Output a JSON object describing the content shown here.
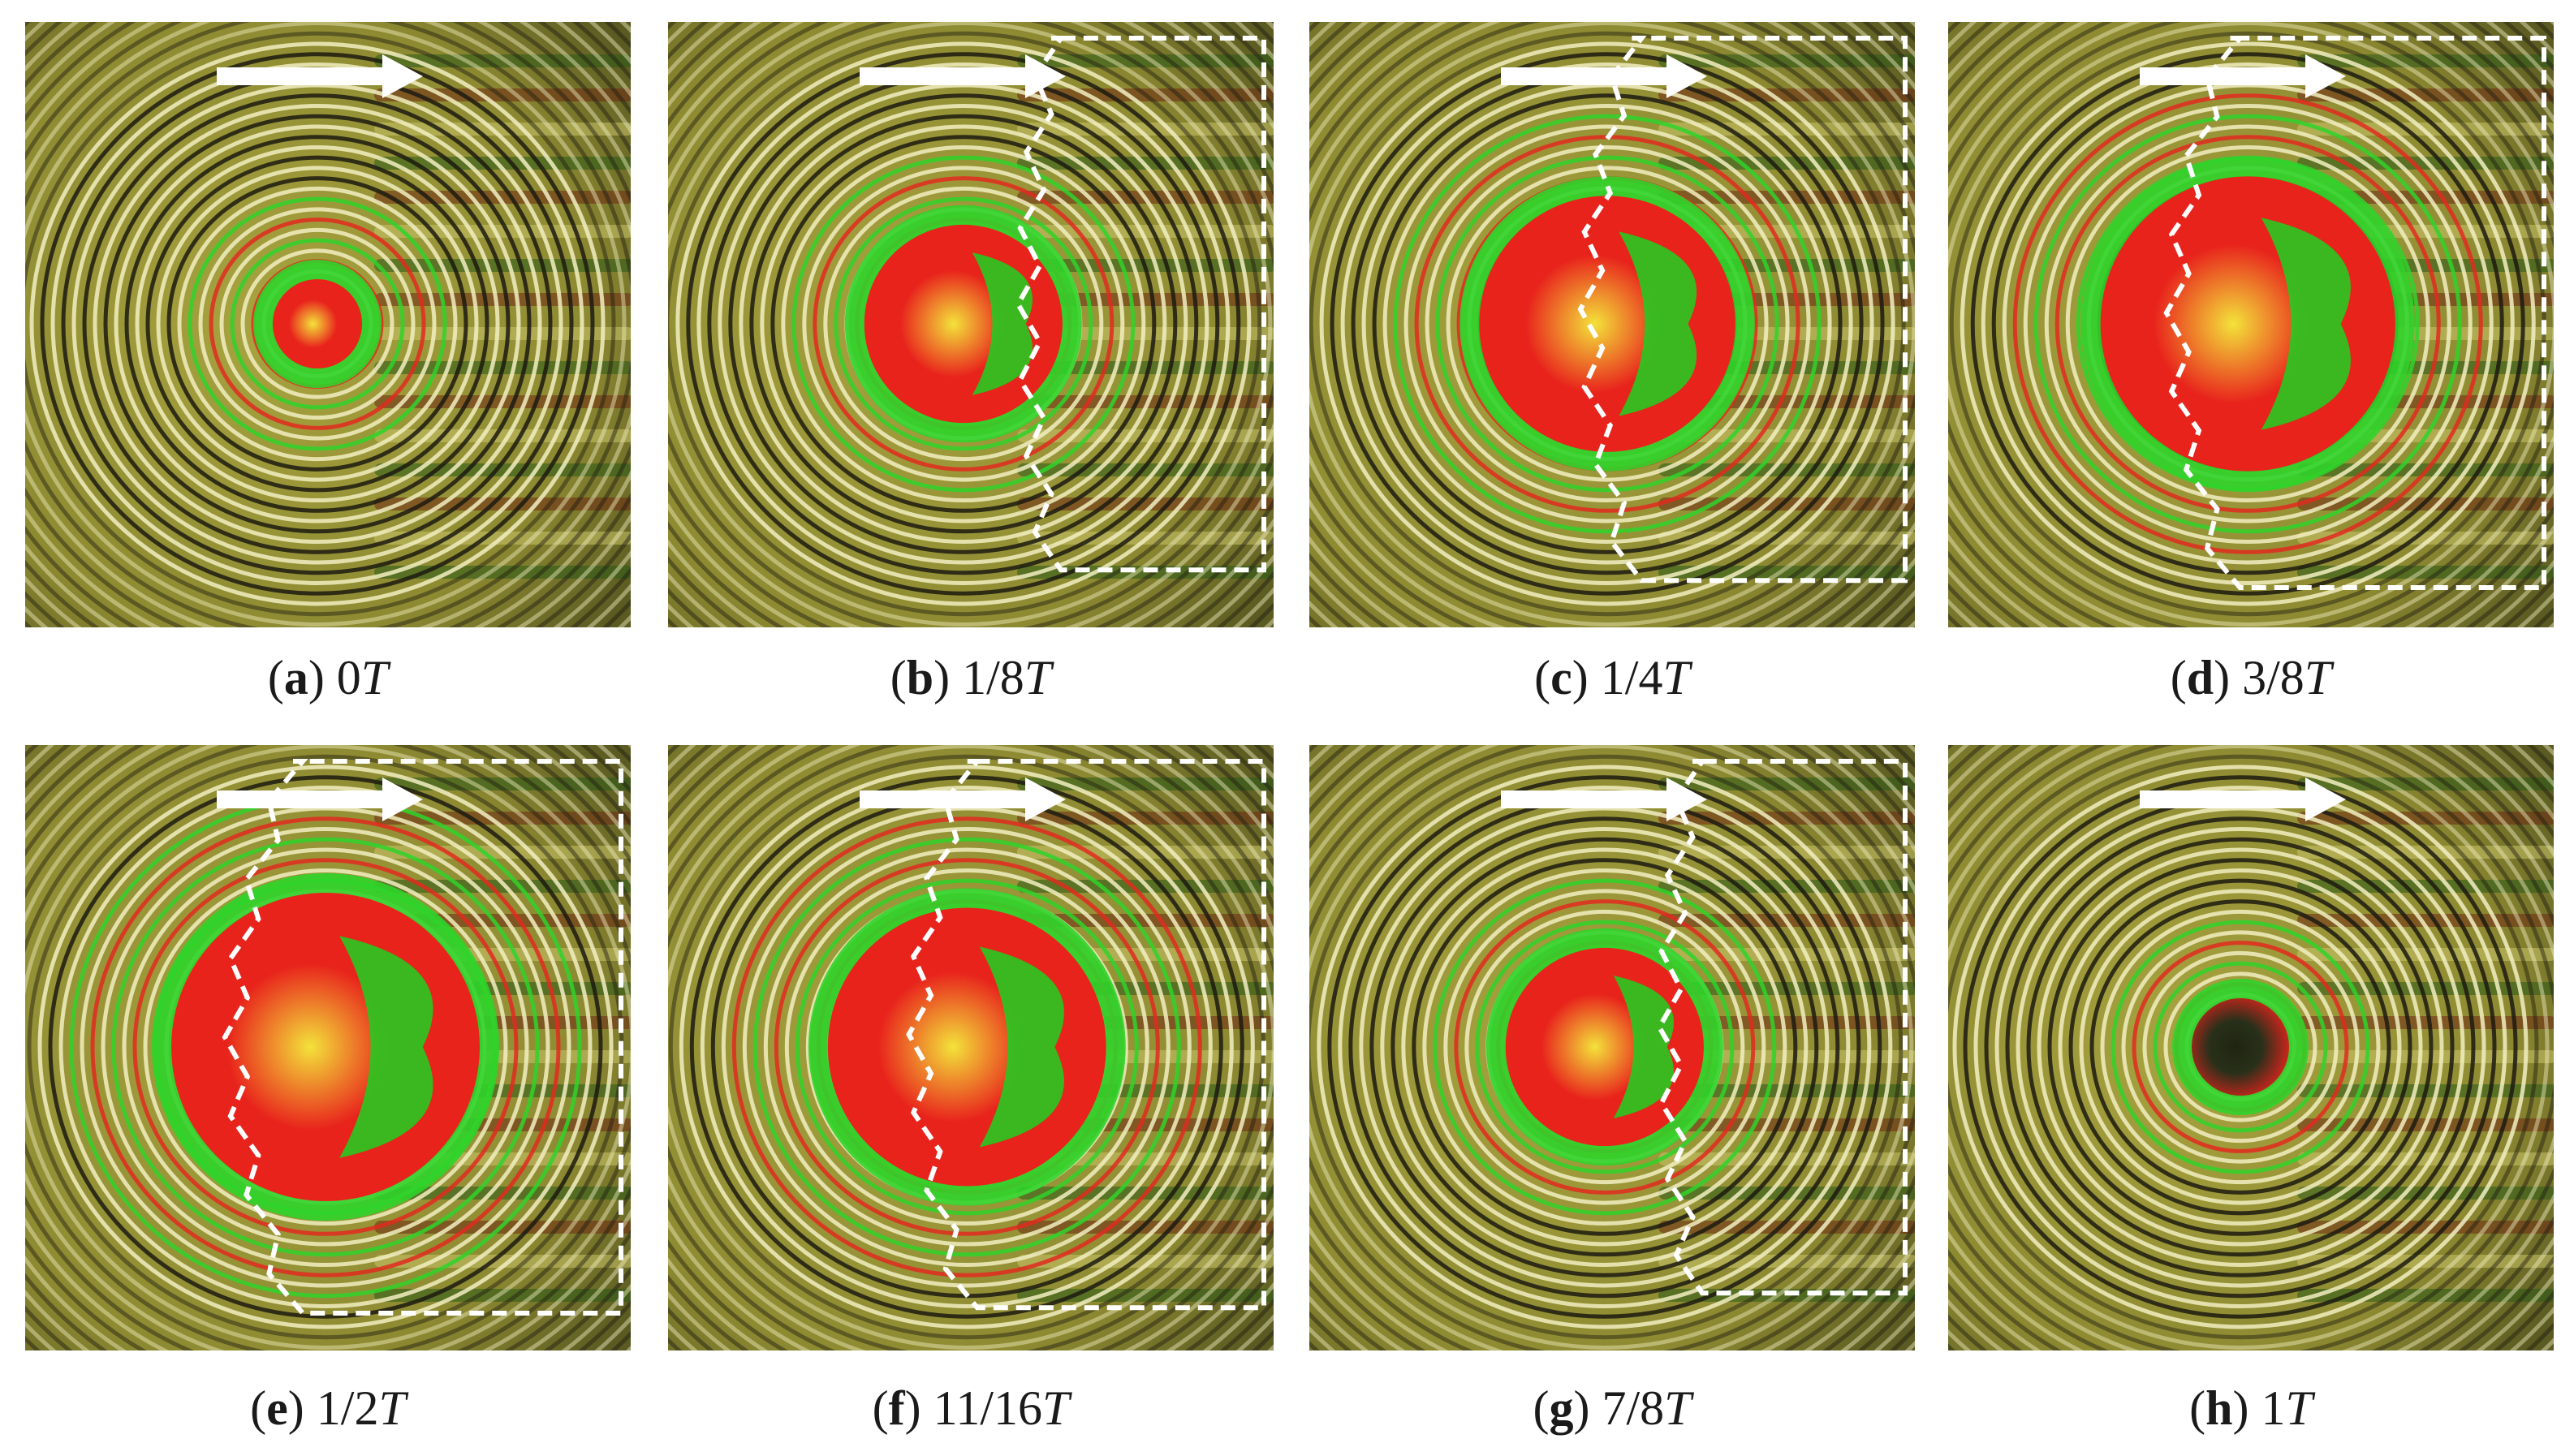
{
  "panels": [
    {
      "label": "a",
      "time": "0",
      "unit": "T",
      "fraction": 0.0,
      "boundary": false
    },
    {
      "label": "b",
      "time": "1/8",
      "unit": "T",
      "fraction": 0.125,
      "boundary": true
    },
    {
      "label": "c",
      "time": "1/4",
      "unit": "T",
      "fraction": 0.25,
      "boundary": true
    },
    {
      "label": "d",
      "time": "3/8",
      "unit": "T",
      "fraction": 0.375,
      "boundary": true
    },
    {
      "label": "e",
      "time": "1/2",
      "unit": "T",
      "fraction": 0.5,
      "boundary": true
    },
    {
      "label": "f",
      "time": "11/16",
      "unit": "T",
      "fraction": 0.6875,
      "boundary": true
    },
    {
      "label": "g",
      "time": "7/8",
      "unit": "T",
      "fraction": 0.875,
      "boundary": true
    },
    {
      "label": "h",
      "time": "1",
      "unit": "T",
      "fraction": 1.0,
      "boundary": false
    }
  ],
  "colors": {
    "background": "#8e8a32",
    "ring_dark": "#1c1a10",
    "ring_light": "#f2efc2",
    "ring_green": "#2fd42a",
    "ring_red": "#e22a1e",
    "core_red": "#e8231c",
    "core_green": "#28c820",
    "arrow": "#ffffff",
    "boundary": "#ffffff"
  },
  "icons": {
    "arrow": "flow-direction-arrow-icon",
    "boundary": "dashed-boundary-outline"
  }
}
